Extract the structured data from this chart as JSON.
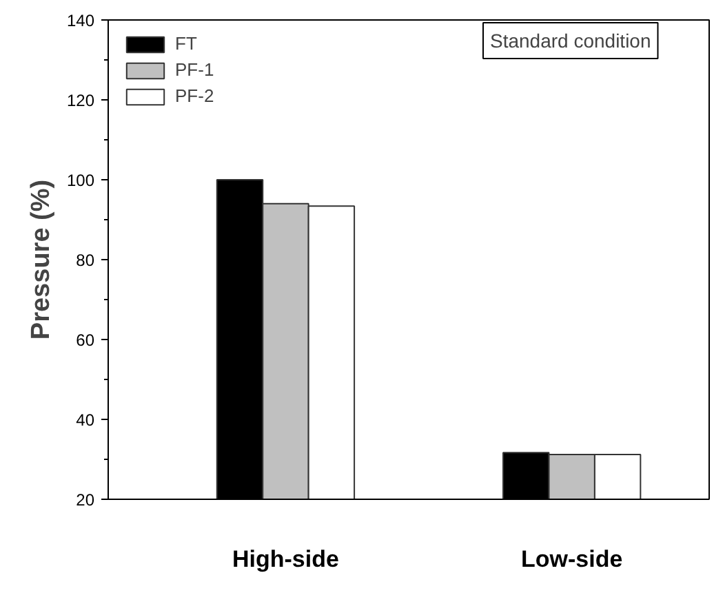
{
  "chart_data": {
    "type": "bar",
    "ylabel": "Pressure (%)",
    "categories": [
      "High-side",
      "Low-side"
    ],
    "series": [
      {
        "name": "FT",
        "color": "#000000",
        "values": [
          100,
          31.7
        ]
      },
      {
        "name": "PF-1",
        "color": "#c0c0c0",
        "values": [
          94,
          31.2
        ]
      },
      {
        "name": "PF-2",
        "color": "#ffffff",
        "values": [
          93.4,
          31.2
        ]
      }
    ],
    "ylim": [
      20,
      140
    ],
    "yticks": [
      20,
      40,
      60,
      80,
      100,
      120,
      140
    ],
    "grid": false,
    "legend": "top left",
    "annotations": [
      "Standard condition"
    ]
  }
}
